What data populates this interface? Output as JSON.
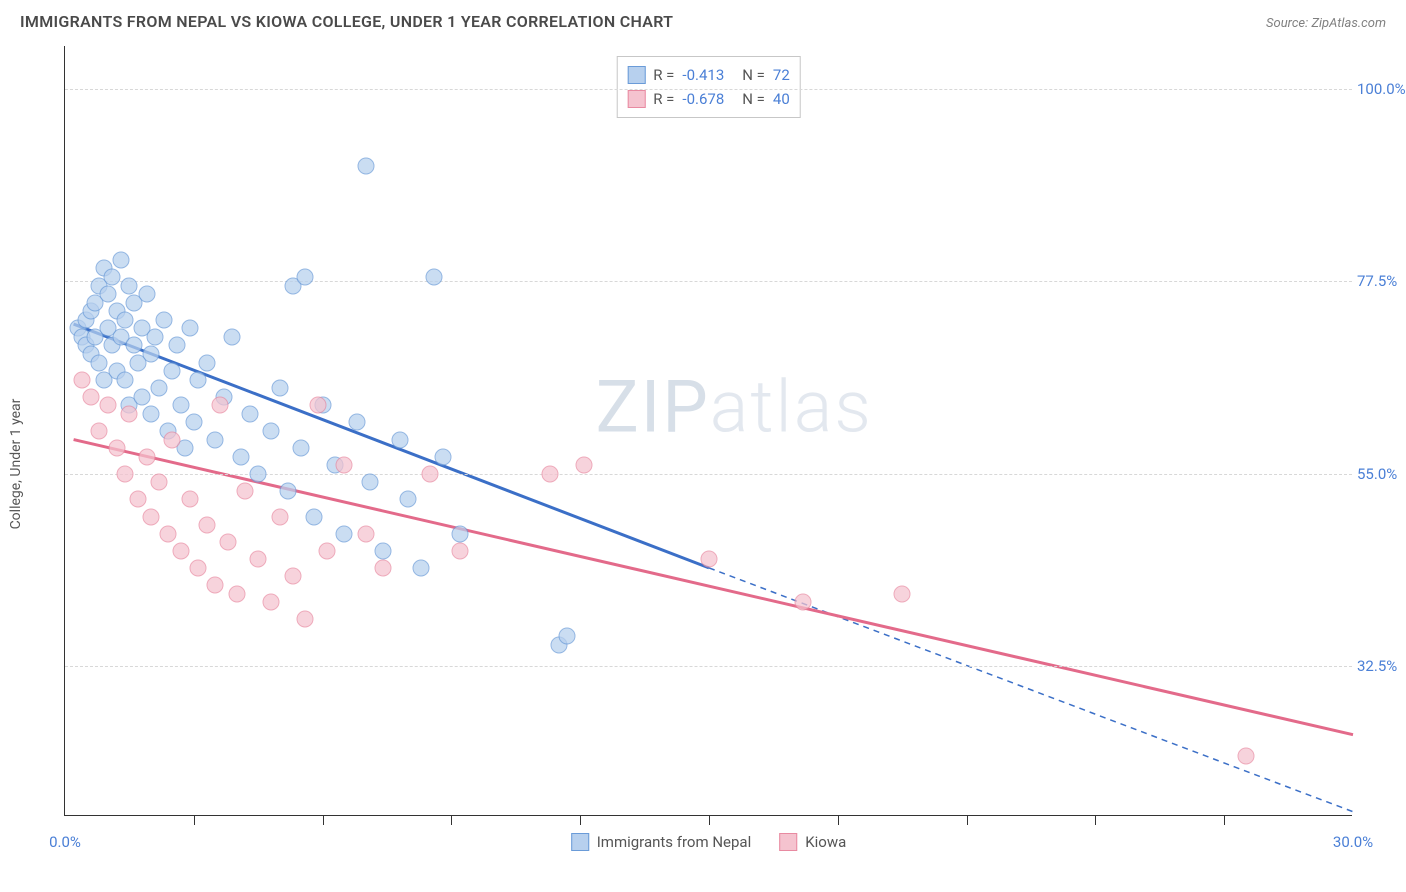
{
  "header": {
    "title": "IMMIGRANTS FROM NEPAL VS KIOWA COLLEGE, UNDER 1 YEAR CORRELATION CHART",
    "source_prefix": "Source: ",
    "source_name": "ZipAtlas.com"
  },
  "chart": {
    "type": "scatter",
    "ylabel": "College, Under 1 year",
    "xlim": [
      0,
      30
    ],
    "ylim": [
      15,
      105
    ],
    "background_color": "#ffffff",
    "grid_color": "#d8d8d8",
    "axis_color": "#333333",
    "yticks": [
      {
        "v": 100.0,
        "label": "100.0%"
      },
      {
        "v": 77.5,
        "label": "77.5%"
      },
      {
        "v": 55.0,
        "label": "55.0%"
      },
      {
        "v": 32.5,
        "label": "32.5%"
      }
    ],
    "xticks_minor": [
      3,
      6,
      9,
      12,
      15,
      18,
      21,
      24,
      27
    ],
    "xticks_labels": [
      {
        "v": 0,
        "label": "0.0%"
      },
      {
        "v": 30,
        "label": "30.0%"
      }
    ],
    "watermark": {
      "bold": "ZIP",
      "light": "atlas"
    },
    "series": [
      {
        "name": "Immigrants from Nepal",
        "fill": "#b7d0ee",
        "stroke": "#6a9bd8",
        "line_color": "#3b6fc7",
        "line_width": 3,
        "R": "-0.413",
        "N": "72",
        "regression": {
          "x1": 0.2,
          "y1": 72.5,
          "x2": 15.0,
          "y2": 44.0
        },
        "regression_ext": {
          "x1": 15.0,
          "y1": 44.0,
          "x2": 30.0,
          "y2": 15.5
        },
        "points": [
          [
            0.3,
            72
          ],
          [
            0.4,
            71
          ],
          [
            0.5,
            70
          ],
          [
            0.5,
            73
          ],
          [
            0.6,
            74
          ],
          [
            0.6,
            69
          ],
          [
            0.7,
            71
          ],
          [
            0.7,
            75
          ],
          [
            0.8,
            77
          ],
          [
            0.8,
            68
          ],
          [
            0.9,
            79
          ],
          [
            0.9,
            66
          ],
          [
            1.0,
            72
          ],
          [
            1.0,
            76
          ],
          [
            1.1,
            78
          ],
          [
            1.1,
            70
          ],
          [
            1.2,
            74
          ],
          [
            1.2,
            67
          ],
          [
            1.3,
            80
          ],
          [
            1.3,
            71
          ],
          [
            1.4,
            66
          ],
          [
            1.4,
            73
          ],
          [
            1.5,
            77
          ],
          [
            1.5,
            63
          ],
          [
            1.6,
            70
          ],
          [
            1.6,
            75
          ],
          [
            1.7,
            68
          ],
          [
            1.8,
            72
          ],
          [
            1.8,
            64
          ],
          [
            1.9,
            76
          ],
          [
            2.0,
            69
          ],
          [
            2.0,
            62
          ],
          [
            2.1,
            71
          ],
          [
            2.2,
            65
          ],
          [
            2.3,
            73
          ],
          [
            2.4,
            60
          ],
          [
            2.5,
            67
          ],
          [
            2.6,
            70
          ],
          [
            2.7,
            63
          ],
          [
            2.8,
            58
          ],
          [
            2.9,
            72
          ],
          [
            3.0,
            61
          ],
          [
            3.1,
            66
          ],
          [
            3.3,
            68
          ],
          [
            3.5,
            59
          ],
          [
            3.7,
            64
          ],
          [
            3.9,
            71
          ],
          [
            4.1,
            57
          ],
          [
            4.3,
            62
          ],
          [
            4.5,
            55
          ],
          [
            4.8,
            60
          ],
          [
            5.0,
            65
          ],
          [
            5.2,
            53
          ],
          [
            5.3,
            77
          ],
          [
            5.5,
            58
          ],
          [
            5.6,
            78
          ],
          [
            5.8,
            50
          ],
          [
            6.0,
            63
          ],
          [
            6.3,
            56
          ],
          [
            6.5,
            48
          ],
          [
            6.8,
            61
          ],
          [
            7.0,
            91
          ],
          [
            7.1,
            54
          ],
          [
            7.4,
            46
          ],
          [
            7.8,
            59
          ],
          [
            8.0,
            52
          ],
          [
            8.3,
            44
          ],
          [
            8.6,
            78
          ],
          [
            8.8,
            57
          ],
          [
            9.2,
            48
          ],
          [
            11.5,
            35
          ],
          [
            11.7,
            36
          ]
        ]
      },
      {
        "name": "Kiowa",
        "fill": "#f5c3cf",
        "stroke": "#e88aa1",
        "line_color": "#e36a8a",
        "line_width": 3,
        "R": "-0.678",
        "N": "40",
        "regression": {
          "x1": 0.2,
          "y1": 59.0,
          "x2": 30.0,
          "y2": 24.5
        },
        "points": [
          [
            0.4,
            66
          ],
          [
            0.6,
            64
          ],
          [
            0.8,
            60
          ],
          [
            1.0,
            63
          ],
          [
            1.2,
            58
          ],
          [
            1.4,
            55
          ],
          [
            1.5,
            62
          ],
          [
            1.7,
            52
          ],
          [
            1.9,
            57
          ],
          [
            2.0,
            50
          ],
          [
            2.2,
            54
          ],
          [
            2.4,
            48
          ],
          [
            2.5,
            59
          ],
          [
            2.7,
            46
          ],
          [
            2.9,
            52
          ],
          [
            3.1,
            44
          ],
          [
            3.3,
            49
          ],
          [
            3.5,
            42
          ],
          [
            3.6,
            63
          ],
          [
            3.8,
            47
          ],
          [
            4.0,
            41
          ],
          [
            4.2,
            53
          ],
          [
            4.5,
            45
          ],
          [
            4.8,
            40
          ],
          [
            5.0,
            50
          ],
          [
            5.3,
            43
          ],
          [
            5.6,
            38
          ],
          [
            5.9,
            63
          ],
          [
            6.1,
            46
          ],
          [
            6.5,
            56
          ],
          [
            7.0,
            48
          ],
          [
            7.4,
            44
          ],
          [
            8.5,
            55
          ],
          [
            9.2,
            46
          ],
          [
            11.3,
            55
          ],
          [
            12.1,
            56
          ],
          [
            15.0,
            45
          ],
          [
            17.2,
            40
          ],
          [
            19.5,
            41
          ],
          [
            27.5,
            22
          ]
        ]
      }
    ]
  },
  "legend_top": {
    "R_label": "R =",
    "N_label": "N ="
  }
}
